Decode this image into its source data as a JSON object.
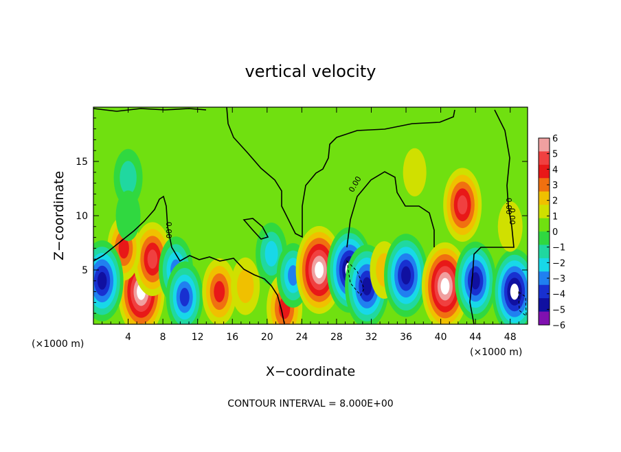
{
  "chart_data": {
    "type": "heatmap",
    "title": "vertical velocity",
    "xlabel": "X−coordinate",
    "ylabel": "Z−coordinate",
    "x_unit": "(×1000 m)",
    "x_unit_right": "(×1000 m)",
    "xlim": [
      0,
      50
    ],
    "ylim": [
      0,
      20
    ],
    "x_ticks": [
      4,
      8,
      12,
      16,
      20,
      24,
      28,
      32,
      36,
      40,
      44,
      48
    ],
    "y_ticks": [
      5,
      10,
      15
    ],
    "colorbar": {
      "range": [
        -6,
        6
      ],
      "ticks": [
        "6",
        "5",
        "4",
        "3",
        "2",
        "1",
        "0",
        "−1",
        "−2",
        "−3",
        "−4",
        "−5",
        "−6"
      ],
      "colors": [
        "#f0a0a0",
        "#f04040",
        "#e81818",
        "#f07010",
        "#f0c000",
        "#d0e000",
        "#70e010",
        "#30d840",
        "#20d8a0",
        "#18d8e8",
        "#2080f0",
        "#1830d0",
        "#1010a0",
        "#8010b0"
      ]
    },
    "contour_note": "CONTOUR INTERVAL = 8.000E+00",
    "contour_labels": [
      "0.00",
      "0.00",
      "0.00",
      "0.00"
    ],
    "cells": [
      {
        "x": 5.5,
        "z": 3.0,
        "w": 1.0
      },
      {
        "x": 6.8,
        "z": 6.0,
        "w": 0.7
      },
      {
        "x": 3.5,
        "z": 7.0,
        "w": 0.5
      },
      {
        "x": 1.0,
        "z": 4.0,
        "w": -0.85
      },
      {
        "x": 9.5,
        "z": 5.0,
        "w": -0.55
      },
      {
        "x": 10.5,
        "z": 2.5,
        "w": -0.65
      },
      {
        "x": 14.5,
        "z": 3.0,
        "w": 0.55
      },
      {
        "x": 17.5,
        "z": 3.5,
        "w": 0.35
      },
      {
        "x": 20.5,
        "z": 6.5,
        "w": -0.45
      },
      {
        "x": 22.0,
        "z": 1.5,
        "w": 0.6
      },
      {
        "x": 23.0,
        "z": 4.5,
        "w": -0.5
      },
      {
        "x": 26.0,
        "z": 5.0,
        "w": 1.0
      },
      {
        "x": 29.5,
        "z": 5.0,
        "w": -0.95
      },
      {
        "x": 31.5,
        "z": 3.5,
        "w": -0.9
      },
      {
        "x": 33.5,
        "z": 5.0,
        "w": 0.35
      },
      {
        "x": 36.0,
        "z": 4.5,
        "w": -0.9
      },
      {
        "x": 40.5,
        "z": 3.5,
        "w": 1.0
      },
      {
        "x": 44.0,
        "z": 4.0,
        "w": -0.8
      },
      {
        "x": 48.5,
        "z": 3.0,
        "w": -0.95
      },
      {
        "x": 42.5,
        "z": 11.0,
        "w": 0.7
      },
      {
        "x": 4.0,
        "z": 13.5,
        "w": -0.35
      },
      {
        "x": 4.0,
        "z": 10.0,
        "w": -0.2
      },
      {
        "x": 37.0,
        "z": 14.0,
        "w": 0.15
      },
      {
        "x": 48.0,
        "z": 9.0,
        "w": 0.2
      }
    ]
  }
}
